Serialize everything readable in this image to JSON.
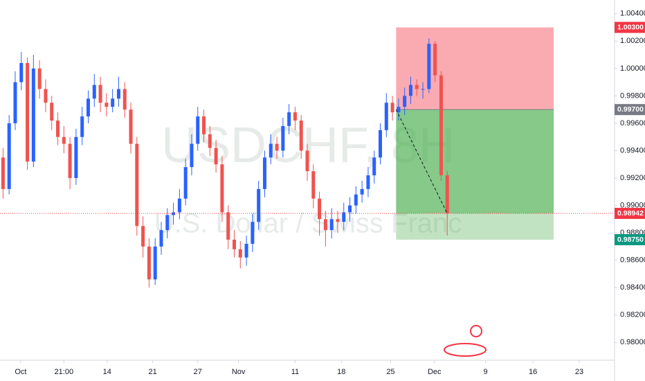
{
  "chart_data": {
    "type": "candlestick",
    "title": "USDCHF, 8H",
    "subtitle": "U.S. Dollar / Swiss Franc",
    "up_color": "#2962ff",
    "down_color": "#ef5350",
    "xlim": [
      0,
      101
    ],
    "ylim": [
      0.9787,
      1.005
    ],
    "xticks": [
      {
        "value": 3.4,
        "label": "Oct"
      },
      {
        "value": 10.5,
        "label": "21:00"
      },
      {
        "value": 17.6,
        "label": "14"
      },
      {
        "value": 25.1,
        "label": "21"
      },
      {
        "value": 32.5,
        "label": "27"
      },
      {
        "value": 39.2,
        "label": "Nov"
      },
      {
        "value": 48.5,
        "label": "11"
      },
      {
        "value": 56.1,
        "label": "18"
      },
      {
        "value": 64.2,
        "label": "25"
      },
      {
        "value": 71.4,
        "label": "Dec"
      },
      {
        "value": 79.8,
        "label": "9"
      },
      {
        "value": 87.6,
        "label": "16"
      },
      {
        "value": 95.2,
        "label": "23"
      }
    ],
    "yticks": [
      {
        "value": 1.004,
        "label": "1.00400"
      },
      {
        "value": 1.002,
        "label": "1.00200"
      },
      {
        "value": 1.0,
        "label": "1.00000"
      },
      {
        "value": 0.998,
        "label": "0.99800"
      },
      {
        "value": 0.996,
        "label": "0.99600"
      },
      {
        "value": 0.994,
        "label": "0.99400"
      },
      {
        "value": 0.992,
        "label": "0.99200"
      },
      {
        "value": 0.99,
        "label": "0.99000"
      },
      {
        "value": 0.988,
        "label": "0.98800"
      },
      {
        "value": 0.986,
        "label": "0.98600"
      },
      {
        "value": 0.984,
        "label": "0.98400"
      },
      {
        "value": 0.982,
        "label": "0.98200"
      },
      {
        "value": 0.98,
        "label": "0.98000"
      }
    ],
    "position": {
      "start": 65.1,
      "end": 91.0,
      "stop": {
        "value": 1.003,
        "label": "1.00300",
        "color": "#f23645"
      },
      "entry": {
        "value": 0.997,
        "label": "0.99700",
        "color": "#787b86"
      },
      "target": {
        "value": 0.9875,
        "label": "0.98750",
        "color": "#089981"
      }
    },
    "last_price": {
      "value": 0.98942,
      "label": "0.98942",
      "color": "#f23645"
    },
    "candles": [
      [
        0.9935,
        0.9942,
        0.9905,
        0.9912
      ],
      [
        0.9912,
        0.9966,
        0.9908,
        0.996
      ],
      [
        0.996,
        0.9998,
        0.9955,
        0.999
      ],
      [
        0.999,
        1.0012,
        0.9984,
        1.0004
      ],
      [
        1.0004,
        1.0008,
        0.9926,
        0.9932
      ],
      [
        0.9932,
        1.001,
        0.9928,
        1.0
      ],
      [
        1.0,
        1.0006,
        0.9978,
        0.9985
      ],
      [
        0.9985,
        0.9992,
        0.9968,
        0.9975
      ],
      [
        0.9975,
        0.998,
        0.9955,
        0.9962
      ],
      [
        0.9962,
        0.9968,
        0.9944,
        0.995
      ],
      [
        0.995,
        0.9958,
        0.9938,
        0.9945
      ],
      [
        0.9945,
        0.995,
        0.9912,
        0.992
      ],
      [
        0.992,
        0.9956,
        0.9915,
        0.995
      ],
      [
        0.995,
        0.9972,
        0.9944,
        0.9965
      ],
      [
        0.9965,
        0.9984,
        0.996,
        0.9978
      ],
      [
        0.9978,
        0.9996,
        0.9972,
        0.9988
      ],
      [
        0.9988,
        0.9994,
        0.9968,
        0.9975
      ],
      [
        0.9975,
        0.9982,
        0.9965,
        0.9972
      ],
      [
        0.9972,
        0.9985,
        0.9968,
        0.9978
      ],
      [
        0.9978,
        0.9994,
        0.9972,
        0.9985
      ],
      [
        0.9985,
        0.999,
        0.9964,
        0.997
      ],
      [
        0.997,
        0.9975,
        0.9938,
        0.9945
      ],
      [
        0.9945,
        0.995,
        0.9878,
        0.9885
      ],
      [
        0.9885,
        0.9892,
        0.9862,
        0.987
      ],
      [
        0.987,
        0.9876,
        0.984,
        0.9846
      ],
      [
        0.9846,
        0.9876,
        0.9842,
        0.987
      ],
      [
        0.987,
        0.9888,
        0.9864,
        0.9882
      ],
      [
        0.9882,
        0.9898,
        0.9876,
        0.9893
      ],
      [
        0.9893,
        0.9902,
        0.9886,
        0.9895
      ],
      [
        0.9895,
        0.9912,
        0.989,
        0.9905
      ],
      [
        0.9905,
        0.9934,
        0.99,
        0.9928
      ],
      [
        0.9928,
        0.9952,
        0.9922,
        0.9945
      ],
      [
        0.9945,
        0.9972,
        0.994,
        0.9965
      ],
      [
        0.9965,
        0.997,
        0.9946,
        0.9952
      ],
      [
        0.9952,
        0.9958,
        0.9936,
        0.9942
      ],
      [
        0.9942,
        0.9948,
        0.9924,
        0.993
      ],
      [
        0.993,
        0.9936,
        0.9888,
        0.9895
      ],
      [
        0.9895,
        0.99,
        0.9868,
        0.9875
      ],
      [
        0.9875,
        0.9882,
        0.9862,
        0.9868
      ],
      [
        0.9868,
        0.9874,
        0.9854,
        0.9862
      ],
      [
        0.9862,
        0.9878,
        0.9856,
        0.9872
      ],
      [
        0.9872,
        0.9894,
        0.9866,
        0.9888
      ],
      [
        0.9888,
        0.9918,
        0.9882,
        0.9912
      ],
      [
        0.9912,
        0.994,
        0.9906,
        0.9935
      ],
      [
        0.9935,
        0.9952,
        0.993,
        0.9945
      ],
      [
        0.9945,
        0.995,
        0.9934,
        0.994
      ],
      [
        0.994,
        0.9964,
        0.9935,
        0.9958
      ],
      [
        0.9958,
        0.9974,
        0.9952,
        0.9968
      ],
      [
        0.9968,
        0.9972,
        0.9955,
        0.9962
      ],
      [
        0.9962,
        0.9966,
        0.9934,
        0.994
      ],
      [
        0.994,
        0.9945,
        0.9918,
        0.9925
      ],
      [
        0.9925,
        0.993,
        0.9898,
        0.9905
      ],
      [
        0.9905,
        0.991,
        0.9878,
        0.989
      ],
      [
        0.989,
        0.9896,
        0.987,
        0.9882
      ],
      [
        0.9882,
        0.9898,
        0.9876,
        0.989
      ],
      [
        0.989,
        0.9896,
        0.988,
        0.9888
      ],
      [
        0.9888,
        0.9902,
        0.9882,
        0.9895
      ],
      [
        0.9895,
        0.9906,
        0.9888,
        0.99
      ],
      [
        0.99,
        0.9914,
        0.9894,
        0.9908
      ],
      [
        0.9908,
        0.9918,
        0.9902,
        0.9912
      ],
      [
        0.9912,
        0.9928,
        0.9906,
        0.9922
      ],
      [
        0.9922,
        0.994,
        0.9916,
        0.9935
      ],
      [
        0.9935,
        0.996,
        0.993,
        0.9955
      ],
      [
        0.9955,
        0.9982,
        0.995,
        0.9975
      ],
      [
        0.9975,
        0.998,
        0.9962,
        0.9968
      ],
      [
        0.9968,
        0.9978,
        0.9962,
        0.9972
      ],
      [
        0.9972,
        0.9986,
        0.9966,
        0.998
      ],
      [
        0.998,
        0.9994,
        0.9974,
        0.9988
      ],
      [
        0.9988,
        0.9992,
        0.998,
        0.9985
      ],
      [
        0.9985,
        0.999,
        0.9978,
        0.9985
      ],
      [
        0.9985,
        1.0022,
        0.9982,
        1.0018
      ],
      [
        1.0018,
        1.002,
        0.999,
        0.9995
      ],
      [
        0.9995,
        0.9998,
        0.9918,
        0.9922
      ],
      [
        0.9922,
        0.9925,
        0.9878,
        0.98942
      ]
    ]
  }
}
